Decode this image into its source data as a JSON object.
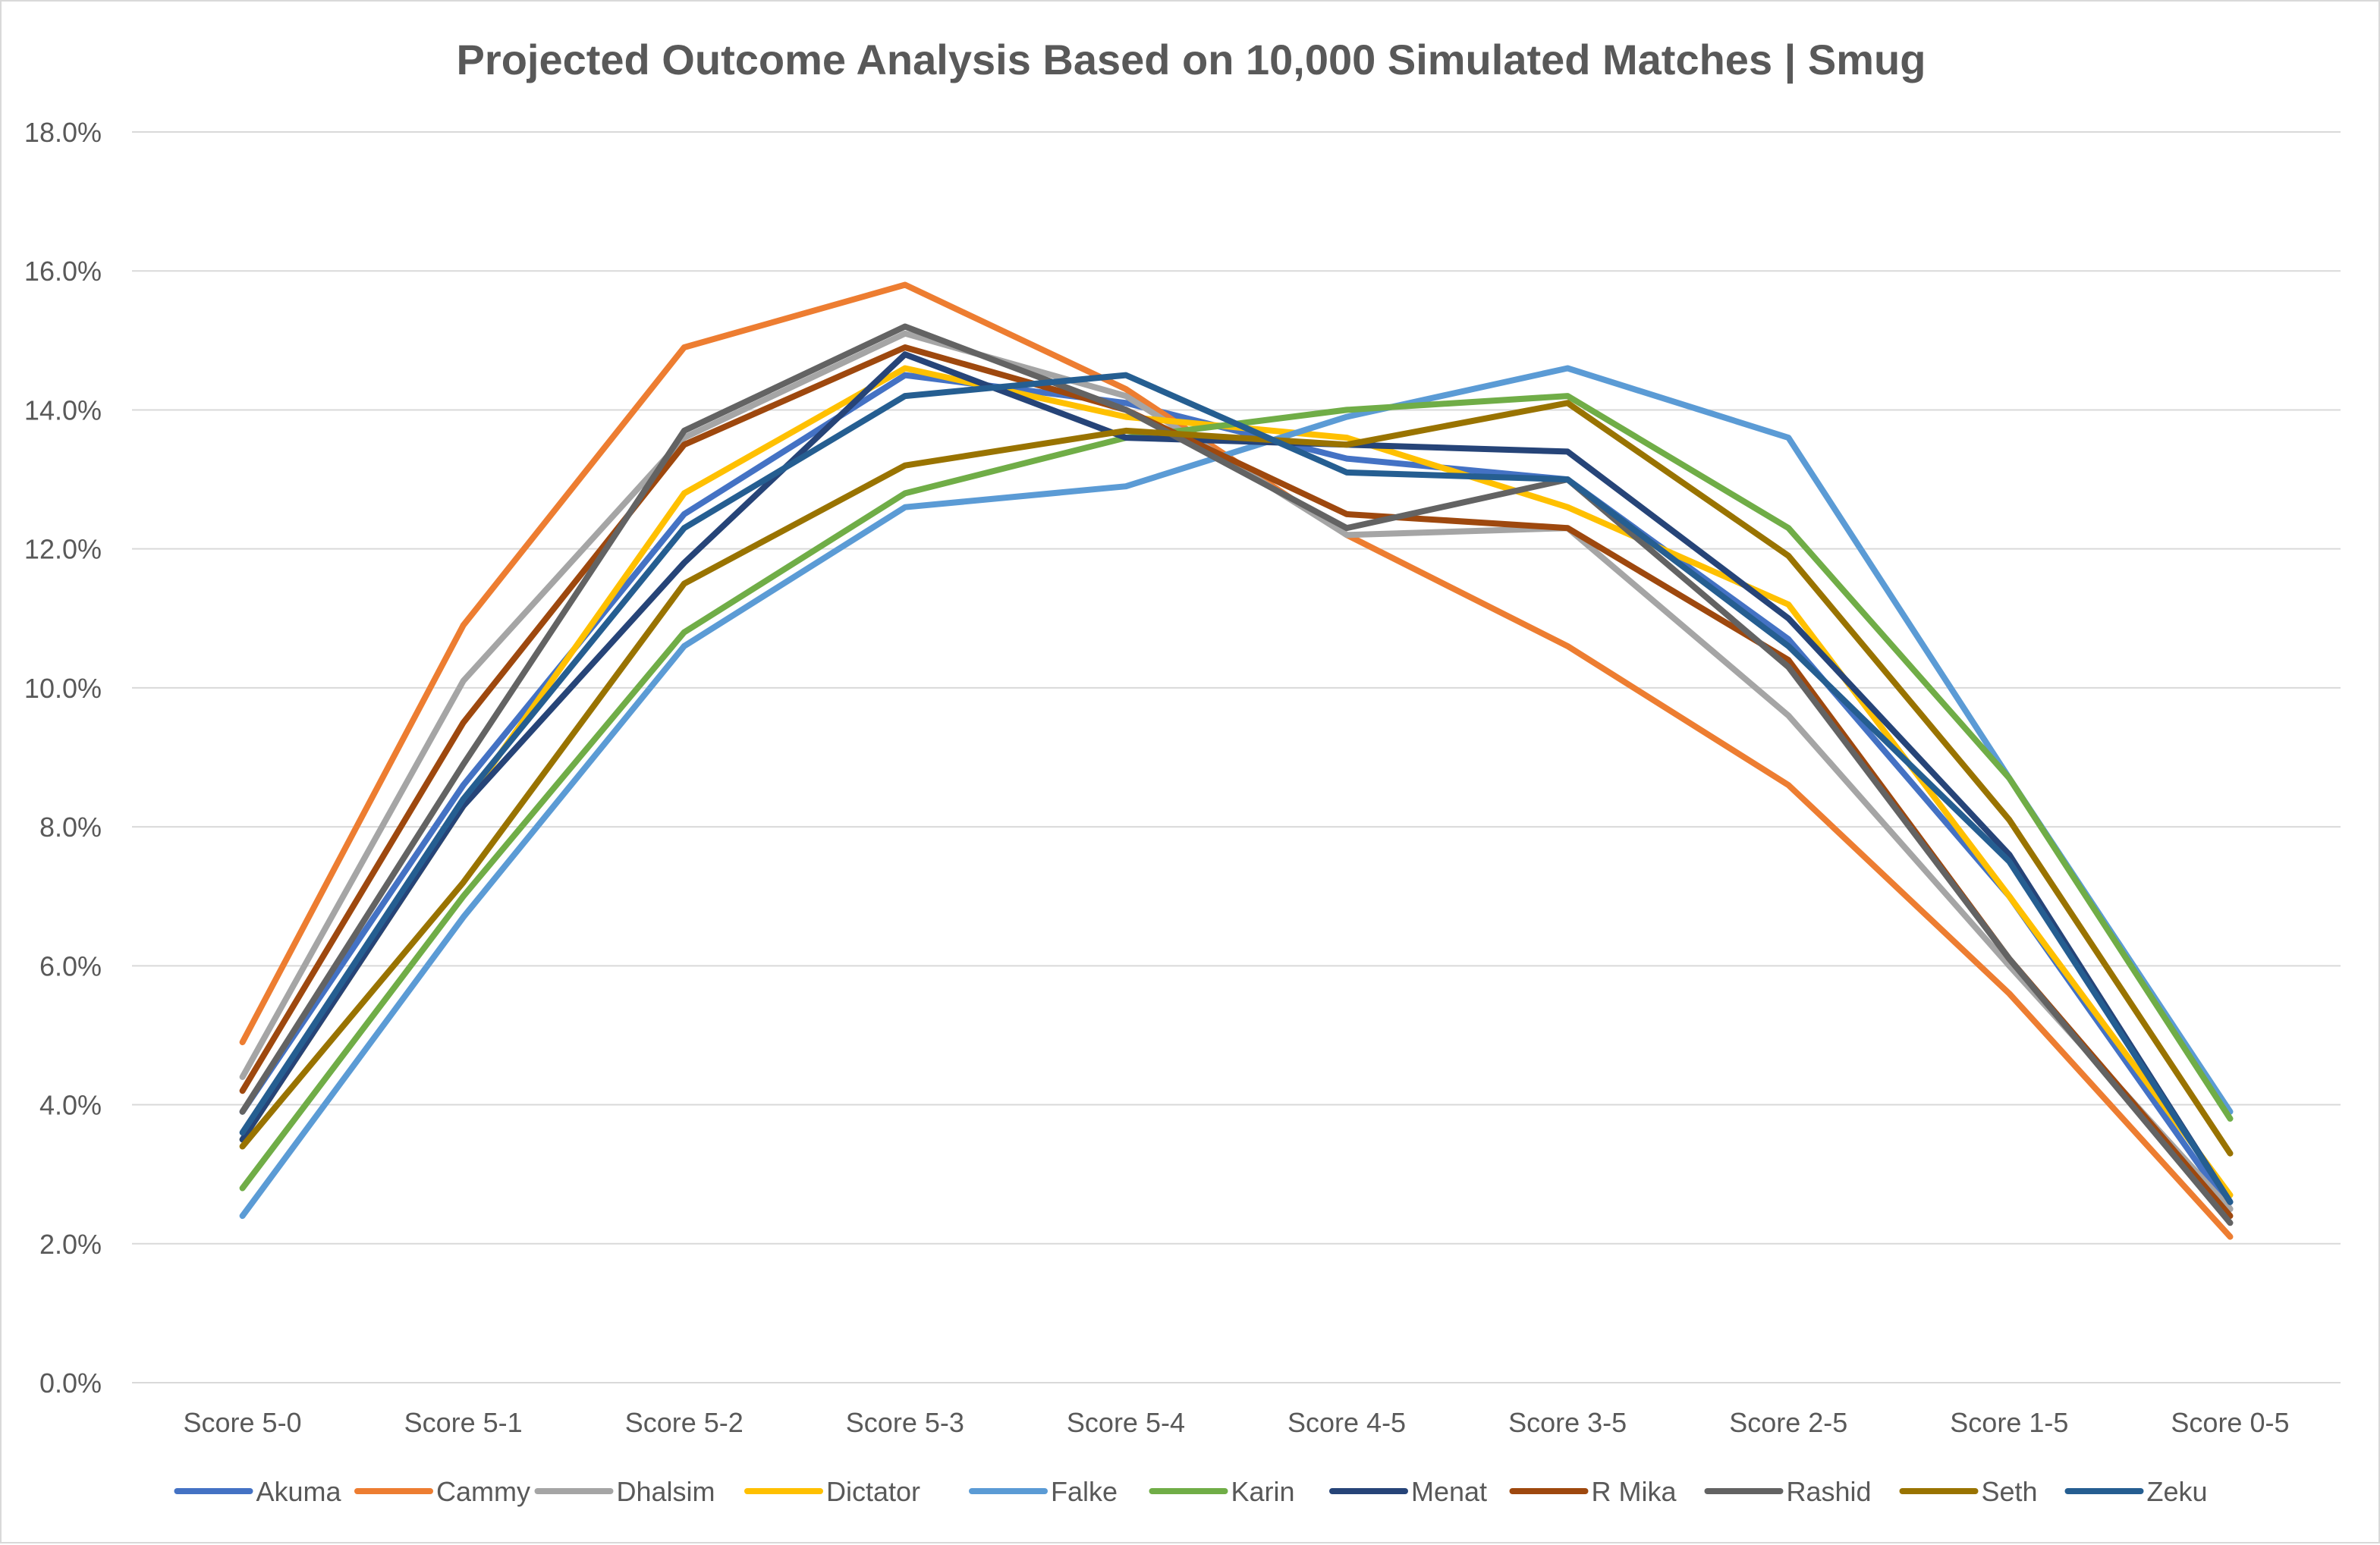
{
  "chart_data": {
    "type": "line",
    "title": "Projected Outcome Analysis Based on 10,000 Simulated Matches | Smug",
    "xlabel": "",
    "ylabel": "",
    "categories": [
      "Score 5-0",
      "Score 5-1",
      "Score 5-2",
      "Score 5-3",
      "Score 5-4",
      "Score 4-5",
      "Score 3-5",
      "Score 2-5",
      "Score 1-5",
      "Score 0-5"
    ],
    "ylim": [
      0,
      18
    ],
    "y_ticks": [
      "0.0%",
      "2.0%",
      "4.0%",
      "6.0%",
      "8.0%",
      "10.0%",
      "12.0%",
      "14.0%",
      "16.0%",
      "18.0%"
    ],
    "y_unit": "%",
    "grid": true,
    "legend_position": "bottom",
    "series": [
      {
        "name": "Akuma",
        "color": "#4472C4",
        "values": [
          3.9,
          8.6,
          12.5,
          14.5,
          14.1,
          13.3,
          13.0,
          10.7,
          7.0,
          2.5
        ]
      },
      {
        "name": "Cammy",
        "color": "#ED7D31",
        "values": [
          4.9,
          10.9,
          14.9,
          15.8,
          14.3,
          12.2,
          10.6,
          8.6,
          5.6,
          2.1
        ]
      },
      {
        "name": "Dhalsim",
        "color": "#A5A5A5",
        "values": [
          4.4,
          10.1,
          13.6,
          15.1,
          14.2,
          12.2,
          12.3,
          9.6,
          6.0,
          2.5
        ]
      },
      {
        "name": "Dictator",
        "color": "#FFC000",
        "values": [
          3.5,
          8.3,
          12.8,
          14.6,
          13.9,
          13.6,
          12.6,
          11.2,
          7.0,
          2.7
        ]
      },
      {
        "name": "Falke",
        "color": "#5B9BD5",
        "values": [
          2.4,
          6.7,
          10.6,
          12.6,
          12.9,
          13.9,
          14.6,
          13.6,
          8.7,
          3.9
        ]
      },
      {
        "name": "Karin",
        "color": "#70AD47",
        "values": [
          2.8,
          7.0,
          10.8,
          12.8,
          13.6,
          14.0,
          14.2,
          12.3,
          8.7,
          3.8
        ]
      },
      {
        "name": "Menat",
        "color": "#264478",
        "values": [
          3.5,
          8.3,
          11.8,
          14.8,
          13.6,
          13.5,
          13.4,
          11.0,
          7.6,
          2.6
        ]
      },
      {
        "name": "R Mika",
        "color": "#9E480E",
        "values": [
          4.2,
          9.5,
          13.5,
          14.9,
          14.0,
          12.5,
          12.3,
          10.4,
          6.1,
          2.4
        ]
      },
      {
        "name": "Rashid",
        "color": "#636363",
        "values": [
          3.9,
          8.9,
          13.7,
          15.2,
          14.0,
          12.3,
          13.0,
          10.3,
          6.1,
          2.3
        ]
      },
      {
        "name": "Seth",
        "color": "#997300",
        "values": [
          3.4,
          7.2,
          11.5,
          13.2,
          13.7,
          13.5,
          14.1,
          11.9,
          8.1,
          3.3
        ]
      },
      {
        "name": "Zeku",
        "color": "#255E91",
        "values": [
          3.6,
          8.4,
          12.3,
          14.2,
          14.5,
          13.1,
          13.0,
          10.6,
          7.5,
          2.6
        ]
      }
    ]
  }
}
